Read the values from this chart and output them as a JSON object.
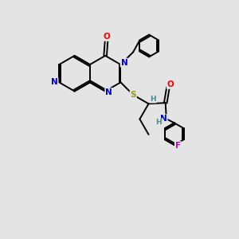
{
  "bg_color": "#e4e4e4",
  "bond_color": "#000000",
  "bond_width": 1.4,
  "atom_colors": {
    "N": "#0000cc",
    "O": "#ff0000",
    "S": "#999900",
    "F": "#cc00cc",
    "H": "#4a8a8a",
    "C": "#000000"
  },
  "font_size": 7.5
}
